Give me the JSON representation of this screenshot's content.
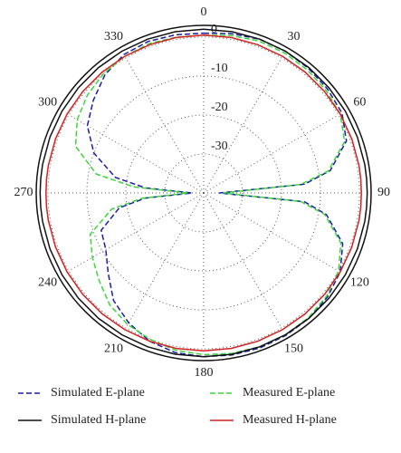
{
  "chart_data": {
    "type": "polar",
    "theta": [
      0,
      10,
      20,
      30,
      40,
      50,
      60,
      70,
      80,
      85,
      90,
      95,
      100,
      110,
      120,
      130,
      140,
      150,
      160,
      170,
      180,
      190,
      200,
      210,
      220,
      230,
      240,
      250,
      260,
      265,
      270,
      275,
      280,
      290,
      300,
      310,
      320,
      330,
      340,
      350
    ],
    "rlim": [
      -40,
      3
    ],
    "rticks": [
      0,
      -10,
      -20,
      -30
    ],
    "thetaticks": [
      0,
      30,
      60,
      90,
      120,
      150,
      180,
      210,
      240,
      270,
      300,
      330
    ],
    "grid": true,
    "series": [
      {
        "name": "Simulated E-plane",
        "color": "#1c1ca8",
        "dash": true,
        "values": [
          1,
          1.5,
          2,
          2,
          1.8,
          1.5,
          1,
          -1,
          -7,
          -14,
          -36,
          -14,
          -8,
          -2,
          0.5,
          1.5,
          2,
          2.2,
          2.3,
          2.2,
          2,
          1.6,
          0.5,
          -1.5,
          -4,
          -8,
          -11,
          -12,
          -18,
          -25,
          -37,
          -25,
          -17,
          -10,
          -5.5,
          -3,
          -0.5,
          1,
          1.4,
          1.2
        ]
      },
      {
        "name": "Measured E-plane",
        "color": "#3ad63a",
        "dash": true,
        "values": [
          0.5,
          1,
          1.5,
          1.5,
          1.3,
          1,
          0.5,
          -1.5,
          -7.5,
          -15,
          -35,
          -15,
          -8.5,
          -2.5,
          0,
          1.2,
          1.8,
          2,
          2,
          1.8,
          1.5,
          1,
          0,
          -1,
          -2.5,
          -5,
          -7,
          -9,
          -16,
          -24,
          -36,
          -22,
          -12,
          -5,
          -2.5,
          -1,
          0,
          0.5,
          0.8,
          0.6
        ]
      },
      {
        "name": "Simulated H-plane",
        "color": "#111111",
        "dash": false,
        "values": [
          2,
          2,
          2,
          2,
          2,
          2,
          2,
          2,
          2,
          2,
          2,
          2,
          2,
          2,
          2,
          2,
          2,
          2,
          2,
          2,
          2,
          2,
          2,
          2,
          2,
          2,
          2,
          2,
          2,
          2,
          2,
          2,
          2,
          2,
          2,
          2,
          2,
          2,
          2,
          2
        ]
      },
      {
        "name": "Measured H-plane",
        "color": "#d42020",
        "dash": false,
        "values": [
          0.5,
          0.5,
          0.5,
          0.5,
          0.5,
          0.5,
          0.5,
          0.5,
          0.5,
          0.5,
          0.5,
          0.5,
          0.5,
          0.5,
          0.5,
          0.5,
          0.5,
          0.5,
          0.5,
          0.5,
          0.5,
          0.5,
          0.5,
          0.5,
          0.5,
          0.5,
          0.5,
          0.5,
          0.5,
          0.5,
          0.5,
          0.5,
          0.5,
          0.5,
          0.5,
          0.5,
          0.5,
          0.5,
          0.5,
          0.5
        ]
      }
    ]
  }
}
